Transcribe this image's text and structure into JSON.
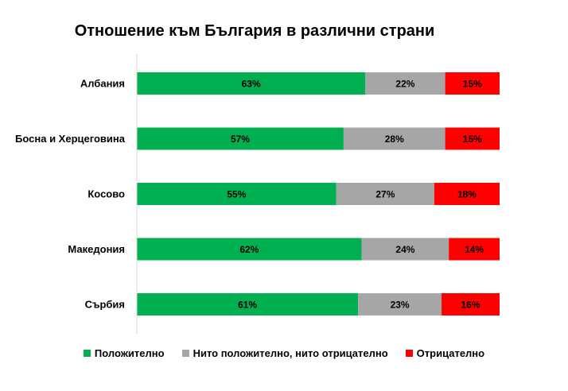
{
  "chart_data": {
    "type": "bar",
    "orientation": "horizontal",
    "stacked": "100%",
    "title": "Отношение към България в различни страни",
    "categories": [
      "Албания",
      "Босна и Херцеговина",
      "Косово",
      "Македония",
      "Сърбия"
    ],
    "series": [
      {
        "name": "Положително",
        "color": "#00B050",
        "values": [
          63,
          57,
          55,
          62,
          61
        ]
      },
      {
        "name": "Нито положително, нито отрицателно",
        "color": "#A6A6A6",
        "values": [
          22,
          28,
          27,
          24,
          23
        ]
      },
      {
        "name": "Отрицателно",
        "color": "#FF0000",
        "values": [
          15,
          15,
          18,
          14,
          16
        ]
      }
    ],
    "value_suffix": "%",
    "legend": "bottom",
    "grid": false
  }
}
